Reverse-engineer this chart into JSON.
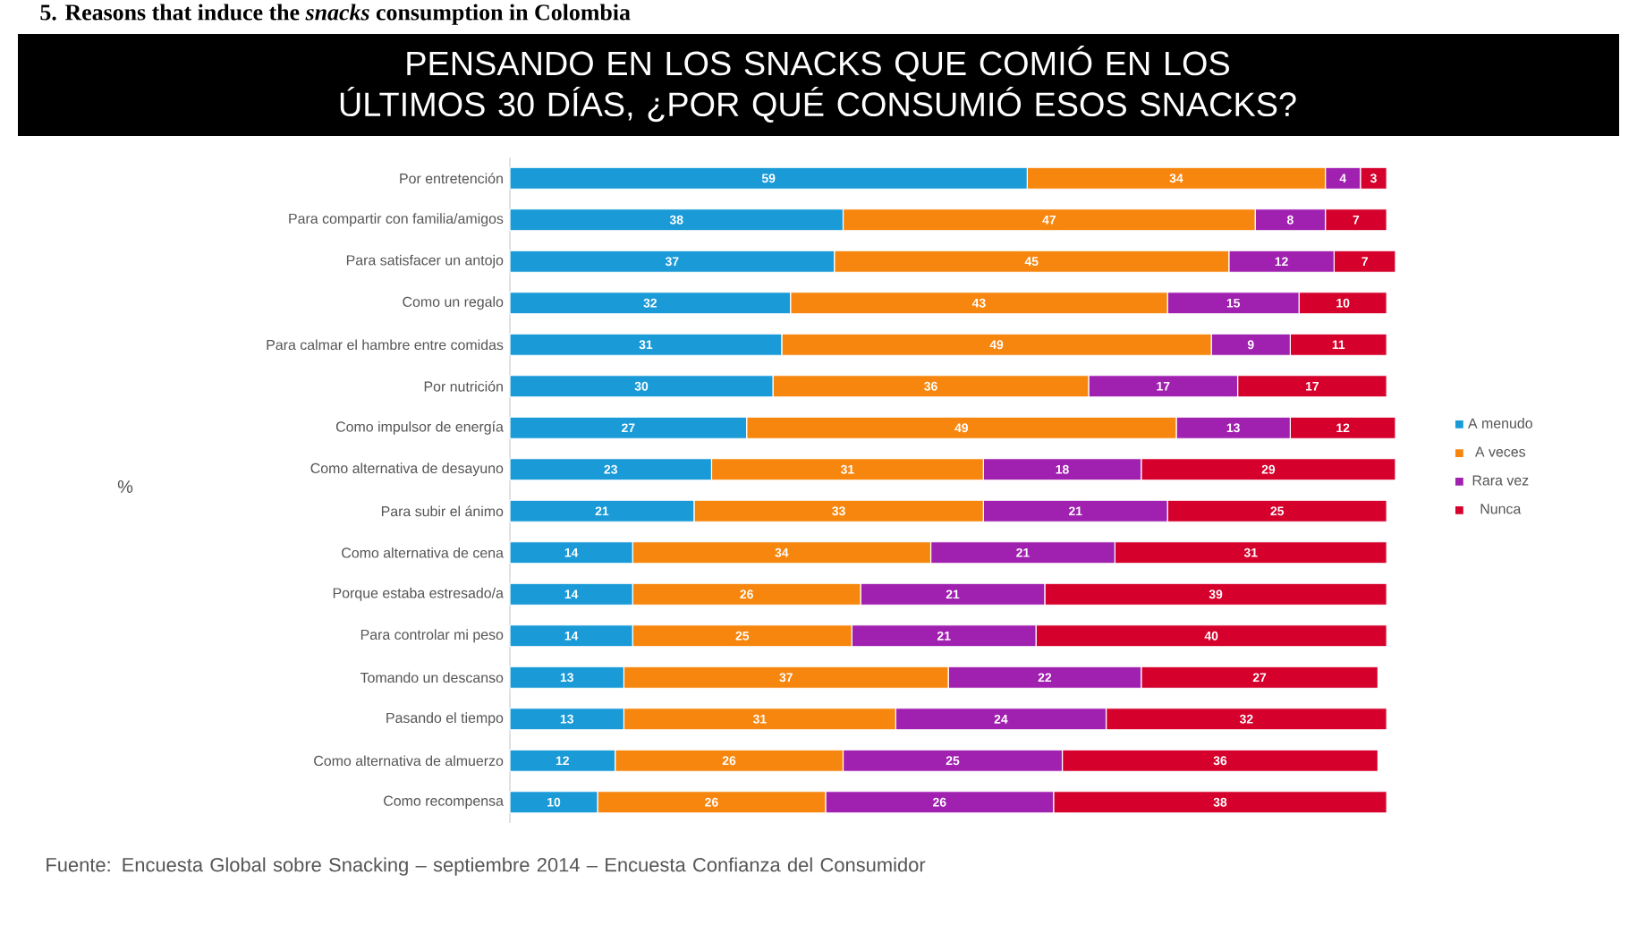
{
  "chart_data": {
    "type": "bar",
    "orientation": "horizontal",
    "stacked": true,
    "data_labels": true,
    "title": "PENSANDO EN LOS SNACKS QUE COMIÓ EN LOS ÚLTIMOS 30 DÍAS, ¿POR QUÉ CONSUMIÓ ESOS SNACKS?",
    "annotations": [
      "5. Reasons that induce the *snacks* consumption in Colombia",
      "Fuente: Encuesta Global sobre Snacking – septiembre 2014 – Encuesta Confianza del Consumidor",
      "%"
    ],
    "categories": [
      "Por entretención",
      "Para compartir con familia/amigos",
      "Para satisfacer un antojo",
      "Como un regalo",
      "Para calmar el hambre entre comidas",
      "Por nutrición",
      "Como impulsor de energía",
      "Como alternativa de desayuno",
      "Para subir el ánimo",
      "Como alternativa de cena",
      "Porque estaba estresado/a",
      "Para controlar mi peso",
      "Tomando un descanso",
      "Pasando el tiempo",
      "Como alternativa de almuerzo",
      "Como recompensa"
    ],
    "tick_labels": "y",
    "legend": "right",
    "series": [
      {
        "name": "A menudo",
        "color": "#1a9bd7",
        "values": [
          59,
          38,
          37,
          32,
          31,
          30,
          27,
          23,
          21,
          14,
          14,
          14,
          13,
          13,
          12,
          10
        ]
      },
      {
        "name": "A veces",
        "color": "#f7860f",
        "values": [
          34,
          47,
          45,
          43,
          49,
          36,
          49,
          31,
          33,
          34,
          26,
          25,
          37,
          31,
          26,
          26
        ]
      },
      {
        "name": "Rara vez",
        "color": "#a020b0",
        "values": [
          4,
          8,
          12,
          15,
          9,
          17,
          13,
          18,
          21,
          21,
          21,
          21,
          22,
          24,
          25,
          26
        ]
      },
      {
        "name": "Nunca",
        "color": "#d5002b",
        "values": [
          3,
          7,
          7,
          10,
          11,
          17,
          12,
          29,
          25,
          31,
          39,
          40,
          27,
          32,
          36,
          38
        ]
      }
    ]
  }
}
